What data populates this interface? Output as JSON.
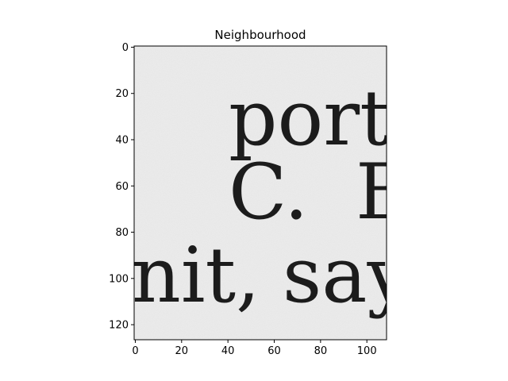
{
  "chart_data": {
    "type": "heatmap",
    "title": "Neighbourhood",
    "colormap": "gray",
    "image_shape": [
      127,
      109
    ],
    "xlim": [
      -0.5,
      108.5
    ],
    "ylim": [
      126.5,
      -0.5
    ],
    "x_ticks": [
      0,
      20,
      40,
      60,
      80,
      100
    ],
    "y_ticks": [
      0,
      20,
      40,
      60,
      80,
      100,
      120
    ],
    "x_tick_labels": [
      "0",
      "20",
      "40",
      "60",
      "80",
      "100"
    ],
    "y_tick_labels": [
      "0",
      "20",
      "40",
      "60",
      "80",
      "100",
      "120"
    ],
    "background_color": "#ececec",
    "ink_color": "#1c1c1c",
    "text_lines": [
      {
        "text": "ports",
        "baseline_y": 42
      },
      {
        "text": "C.",
        "baseline_y": 74
      },
      {
        "text": "B",
        "baseline_y": 74
      },
      {
        "text": "nit,",
        "baseline_y": 110
      },
      {
        "text": "say",
        "baseline_y": 110
      }
    ]
  }
}
